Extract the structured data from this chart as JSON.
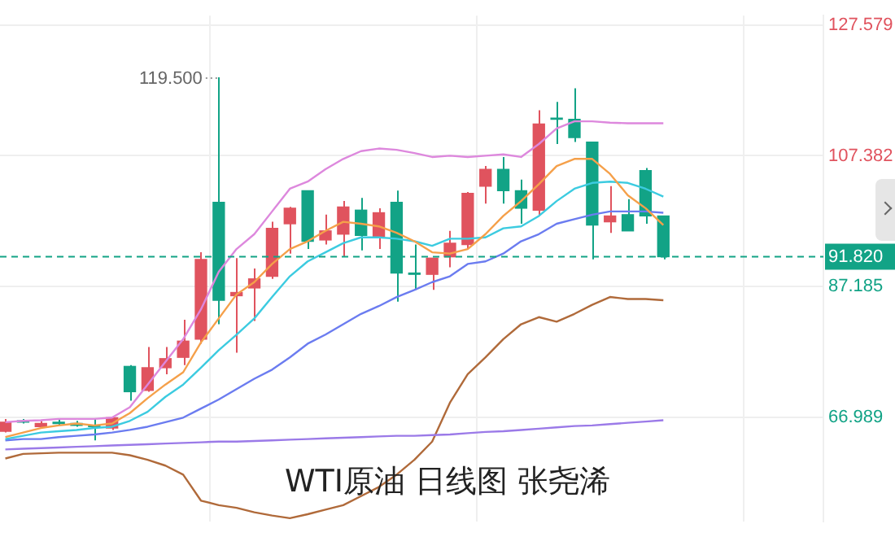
{
  "chart_data": {
    "type": "candlestick",
    "title": "WTI原油 日线图 张尧浠",
    "categories": [
      null,
      null,
      null,
      null,
      null,
      null,
      null,
      null,
      null,
      null,
      null,
      null,
      null,
      null,
      null,
      null,
      null,
      null,
      null,
      null,
      null,
      null,
      null,
      null,
      null,
      null,
      null,
      null,
      null,
      null,
      null,
      null,
      null,
      null,
      null,
      null,
      null,
      null
    ],
    "ohlc": [
      [
        64.9,
        66.8,
        64.7,
        66.3
      ],
      [
        66.5,
        66.8,
        66.1,
        66.3
      ],
      [
        65.6,
        66.5,
        65.4,
        66.1
      ],
      [
        66.3,
        66.8,
        65.8,
        66.1
      ],
      [
        66.1,
        66.5,
        65.6,
        65.8
      ],
      [
        65.8,
        66.8,
        63.5,
        65.6
      ],
      [
        65.4,
        67.0,
        65.1,
        67.0
      ],
      [
        74.9,
        75.1,
        69.6,
        71.0
      ],
      [
        71.2,
        77.9,
        71.0,
        74.7
      ],
      [
        74.7,
        77.9,
        73.7,
        76.1
      ],
      [
        76.3,
        82.1,
        75.1,
        78.8
      ],
      [
        79.1,
        92.5,
        78.4,
        91.4
      ],
      [
        100.2,
        119.5,
        81.4,
        85.1
      ],
      [
        85.8,
        91.6,
        77.0,
        86.3
      ],
      [
        87.0,
        90.0,
        81.9,
        88.4
      ],
      [
        88.8,
        97.2,
        88.4,
        96.2
      ],
      [
        96.9,
        99.5,
        92.3,
        99.3
      ],
      [
        102.0,
        102.0,
        93.0,
        94.2
      ],
      [
        94.4,
        98.3,
        93.7,
        95.8
      ],
      [
        95.3,
        100.4,
        91.8,
        99.5
      ],
      [
        99.0,
        100.9,
        92.8,
        95.1
      ],
      [
        94.9,
        99.3,
        93.0,
        98.6
      ],
      [
        100.2,
        102.0,
        84.9,
        89.3
      ],
      [
        89.3,
        93.7,
        86.7,
        89.1
      ],
      [
        89.1,
        91.6,
        86.7,
        91.6
      ],
      [
        91.8,
        95.8,
        90.2,
        93.9
      ],
      [
        93.7,
        101.8,
        93.0,
        101.6
      ],
      [
        102.7,
        105.8,
        100.0,
        105.3
      ],
      [
        105.3,
        107.2,
        100.0,
        102.0
      ],
      [
        102.0,
        103.7,
        96.9,
        99.3
      ],
      [
        99.0,
        114.4,
        98.1,
        112.3
      ],
      [
        113.2,
        115.7,
        109.2,
        113.0
      ],
      [
        113.0,
        117.8,
        109.5,
        110.2
      ],
      [
        109.5,
        109.5,
        91.4,
        96.7
      ],
      [
        97.2,
        102.7,
        95.5,
        98.1
      ],
      [
        98.3,
        100.7,
        95.8,
        95.8
      ],
      [
        105.1,
        105.5,
        96.9,
        98.1
      ],
      [
        98.1,
        98.1,
        91.4,
        91.82
      ]
    ],
    "colors": [
      "#e0535e",
      "#12a386",
      "#e0535e",
      "#12a386",
      "#12a386",
      "#12a386",
      "#e0535e",
      "#12a386",
      "#e0535e",
      "#e0535e",
      "#e0535e",
      "#e0535e",
      "#12a386",
      "#e0535e",
      "#e0535e",
      "#e0535e",
      "#e0535e",
      "#12a386",
      "#e0535e",
      "#e0535e",
      "#12a386",
      "#e0535e",
      "#12a386",
      "#12a386",
      "#e0535e",
      "#e0535e",
      "#e0535e",
      "#e0535e",
      "#12a386",
      "#12a386",
      "#e0535e",
      "#12a386",
      "#12a386",
      "#12a386",
      "#e0535e",
      "#12a386",
      "#12a386",
      "#12a386"
    ],
    "series": [
      {
        "type": "line",
        "color": "#dd88dd",
        "values": [
          66.3,
          66.5,
          66.6,
          66.8,
          66.8,
          66.8,
          67.0,
          68.6,
          72.1,
          75.6,
          79.1,
          83.7,
          89.5,
          93.0,
          95.3,
          98.8,
          102.3,
          103.4,
          105.3,
          106.9,
          108.1,
          108.5,
          108.3,
          107.8,
          107.2,
          107.4,
          107.2,
          107.4,
          107.6,
          107.2,
          109.2,
          111.6,
          112.7,
          112.7,
          112.5,
          112.4,
          112.4,
          112.4
        ]
      },
      {
        "type": "line",
        "color": "#f5a04a",
        "values": [
          64.0,
          64.7,
          65.4,
          65.8,
          66.1,
          65.8,
          66.1,
          67.7,
          70.0,
          72.1,
          74.0,
          78.6,
          82.3,
          86.0,
          87.9,
          90.7,
          93.0,
          94.2,
          95.8,
          97.2,
          96.9,
          96.5,
          95.5,
          94.2,
          92.5,
          92.3,
          93.0,
          95.3,
          98.1,
          100.4,
          103.0,
          105.8,
          106.9,
          106.9,
          104.6,
          101.3,
          99.3,
          96.7
        ]
      },
      {
        "type": "line",
        "color": "#3ccbe0",
        "values": [
          63.7,
          64.2,
          64.7,
          64.9,
          65.1,
          65.4,
          65.6,
          66.5,
          67.9,
          70.2,
          72.1,
          74.7,
          77.4,
          79.8,
          82.3,
          85.6,
          88.8,
          91.1,
          92.5,
          93.9,
          94.8,
          94.8,
          94.6,
          94.2,
          93.5,
          94.6,
          94.6,
          94.8,
          96.2,
          96.5,
          98.1,
          100.4,
          102.3,
          103.2,
          103.4,
          103.2,
          102.3,
          101.1
        ]
      },
      {
        "type": "line",
        "color": "#6b7cf0",
        "values": [
          63.5,
          63.7,
          63.7,
          64.0,
          64.2,
          64.4,
          64.7,
          65.1,
          65.6,
          66.3,
          67.0,
          68.4,
          69.8,
          71.4,
          73.0,
          74.4,
          76.3,
          78.4,
          79.8,
          81.4,
          83.0,
          84.2,
          85.6,
          86.7,
          87.9,
          88.8,
          90.7,
          91.1,
          92.3,
          94.2,
          95.3,
          96.9,
          97.6,
          98.3,
          98.8,
          98.8,
          98.8,
          98.6
        ]
      },
      {
        "type": "line",
        "color": "#9b7ae8",
        "values": [
          62.1,
          62.2,
          62.3,
          62.4,
          62.5,
          62.6,
          62.7,
          62.8,
          62.9,
          63.0,
          63.1,
          63.2,
          63.3,
          63.3,
          63.4,
          63.5,
          63.6,
          63.7,
          63.8,
          63.9,
          64.0,
          64.1,
          64.2,
          64.2,
          64.3,
          64.4,
          64.6,
          64.8,
          64.9,
          65.1,
          65.3,
          65.5,
          65.7,
          65.8,
          66.0,
          66.2,
          66.4,
          66.6
        ]
      },
      {
        "type": "line",
        "color": "#b06a3a",
        "values": [
          60.7,
          61.4,
          61.5,
          61.6,
          61.6,
          61.6,
          61.6,
          61.2,
          60.5,
          59.6,
          58.2,
          54.2,
          53.5,
          53.1,
          52.4,
          51.9,
          51.5,
          52.1,
          52.8,
          53.5,
          54.9,
          56.3,
          58.2,
          60.5,
          63.3,
          69.3,
          73.7,
          76.3,
          79.1,
          81.4,
          82.5,
          81.8,
          83.0,
          84.4,
          85.6,
          85.3,
          85.3,
          85.1
        ]
      }
    ],
    "ylim": [
      51,
      129
    ],
    "yticks": [
      66.989,
      87.185,
      107.382,
      127.579
    ],
    "ref_lines": [
      {
        "axis": "y",
        "value": 91.82,
        "label": "91.820",
        "color": "#12a386",
        "line_style": "dashed"
      }
    ],
    "annotations": [
      "119.500"
    ],
    "grid": true,
    "legend": false,
    "marker": "none",
    "tick_labels": "y"
  }
}
